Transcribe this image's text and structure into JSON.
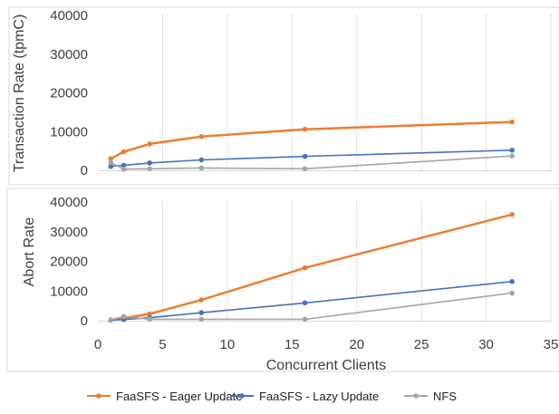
{
  "chart_data": [
    {
      "type": "line",
      "ylabel": "Transaction Rate (tpmC)",
      "xlabel": "",
      "xlim": [
        0,
        35
      ],
      "ylim": [
        0,
        40000
      ],
      "yticks": [
        0,
        10000,
        20000,
        30000,
        40000
      ],
      "ytick_labels": [
        "0",
        "10000",
        "20000",
        "30000",
        "40000"
      ],
      "grid": "vertical",
      "series": [
        {
          "name": "FaaSFS - Eager Update",
          "color": "#ED7D31",
          "x": [
            1,
            2,
            4,
            8,
            16,
            32
          ],
          "y": [
            3000,
            4800,
            6800,
            8700,
            10600,
            12500
          ]
        },
        {
          "name": "FaaSFS - Lazy Update",
          "color": "#4472C4",
          "x": [
            1,
            2,
            4,
            8,
            16,
            32
          ],
          "y": [
            1000,
            1300,
            1900,
            2700,
            3600,
            5200
          ]
        },
        {
          "name": "NFS",
          "color": "#A5A5A5",
          "x": [
            1,
            2,
            4,
            8,
            16,
            32
          ],
          "y": [
            2000,
            300,
            400,
            600,
            400,
            3700
          ]
        }
      ]
    },
    {
      "type": "line",
      "ylabel": "Abort Rate",
      "xlabel": "Concurrent Clients",
      "xlim": [
        0,
        35
      ],
      "ylim": [
        0,
        40000
      ],
      "xticks": [
        0,
        5,
        10,
        15,
        20,
        25,
        30,
        35
      ],
      "xtick_labels": [
        "0",
        "5",
        "10",
        "15",
        "20",
        "25",
        "30",
        "35"
      ],
      "yticks": [
        0,
        10000,
        20000,
        30000,
        40000
      ],
      "ytick_labels": [
        "0",
        "10000",
        "20000",
        "30000",
        "40000"
      ],
      "grid": "vertical",
      "series": [
        {
          "name": "FaaSFS - Eager Update",
          "color": "#ED7D31",
          "x": [
            1,
            2,
            4,
            8,
            16,
            32
          ],
          "y": [
            300,
            800,
            2300,
            7000,
            17800,
            35800
          ]
        },
        {
          "name": "FaaSFS - Lazy Update",
          "color": "#4472C4",
          "x": [
            1,
            2,
            4,
            8,
            16,
            32
          ],
          "y": [
            200,
            400,
            1000,
            2700,
            6000,
            13200
          ]
        },
        {
          "name": "NFS",
          "color": "#A5A5A5",
          "x": [
            1,
            2,
            4,
            8,
            16,
            32
          ],
          "y": [
            300,
            1400,
            500,
            500,
            500,
            9300
          ]
        }
      ]
    }
  ],
  "legend": {
    "placement": "bottom",
    "items": [
      {
        "label": "FaaSFS - Eager Update",
        "color": "#ED7D31"
      },
      {
        "label": "FaaSFS - Lazy Update",
        "color": "#4472C4"
      },
      {
        "label": "NFS",
        "color": "#A5A5A5"
      }
    ]
  }
}
